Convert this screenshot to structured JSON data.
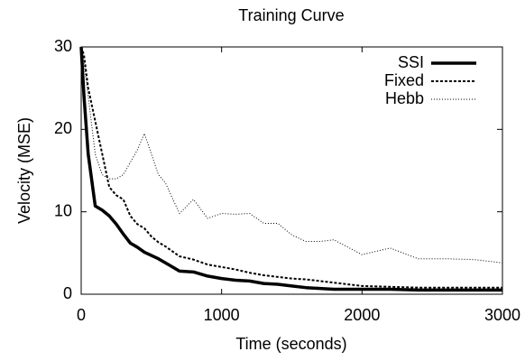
{
  "chart_data": {
    "type": "line",
    "title": "Training Curve",
    "x_label": "Time (seconds)",
    "y_label": "Velocity (MSE)",
    "x": [
      0,
      20,
      50,
      100,
      150,
      200,
      250,
      300,
      350,
      400,
      450,
      500,
      550,
      600,
      700,
      800,
      900,
      1000,
      1100,
      1200,
      1300,
      1400,
      1500,
      1600,
      1700,
      1800,
      2000,
      2200,
      2400,
      2600,
      2800,
      3000
    ],
    "series": [
      {
        "name": "SSI",
        "color": "#000000",
        "line_width": 3.5,
        "dash": "none",
        "values": [
          30,
          24,
          17,
          10.7,
          10.2,
          9.5,
          8.5,
          7.3,
          6.2,
          5.7,
          5.1,
          4.7,
          4.3,
          3.8,
          2.8,
          2.7,
          2.2,
          1.9,
          1.7,
          1.6,
          1.3,
          1.2,
          1.0,
          0.8,
          0.7,
          0.6,
          0.6,
          0.6,
          0.5,
          0.5,
          0.5,
          0.5
        ]
      },
      {
        "name": "Fixed",
        "color": "#000000",
        "line_width": 2,
        "dash": "3,2",
        "values": [
          30,
          29,
          25,
          21,
          17,
          13,
          12,
          11.5,
          9.5,
          8.5,
          8,
          7,
          6.3,
          5.8,
          4.6,
          4.2,
          3.6,
          3.3,
          3.0,
          2.6,
          2.3,
          2.1,
          1.9,
          1.8,
          1.6,
          1.4,
          1.0,
          0.9,
          0.8,
          0.8,
          0.8,
          0.8
        ]
      },
      {
        "name": "Hebb",
        "color": "#000000",
        "line_width": 1,
        "dash": "1,2",
        "values": [
          30,
          28,
          24,
          17,
          14.5,
          14,
          14,
          14.5,
          16,
          17.5,
          19.5,
          17,
          14.5,
          13.5,
          9.8,
          11.5,
          9.2,
          9.8,
          9.7,
          9.8,
          8.6,
          8.6,
          7.2,
          6.4,
          6.4,
          6.6,
          4.8,
          5.6,
          4.3,
          4.3,
          4.2,
          3.8
        ]
      }
    ],
    "xlim": [
      0,
      3000
    ],
    "xticks": [
      0,
      1000,
      2000,
      3000
    ],
    "ylim": [
      0,
      30
    ],
    "yticks": [
      0,
      10,
      20,
      30
    ],
    "grid": false,
    "legend": "upper right"
  }
}
